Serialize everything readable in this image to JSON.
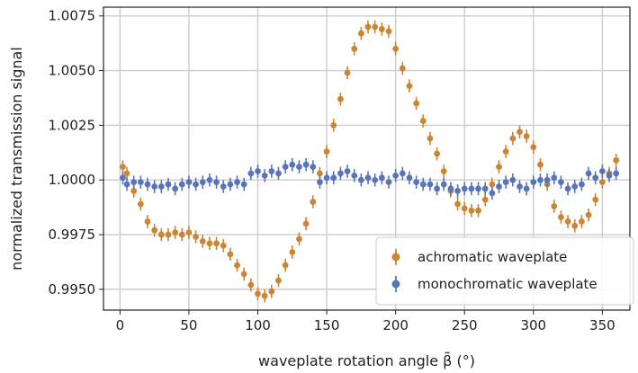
{
  "chart_data": {
    "type": "scatter",
    "title": "",
    "xlabel": "waveplate rotation angle β̃ (°)",
    "ylabel": "normalized transmission signal",
    "xlim": [
      -12,
      370
    ],
    "ylim": [
      0.99405,
      1.0079
    ],
    "xticks": [
      0,
      50,
      100,
      150,
      200,
      250,
      300,
      350
    ],
    "yticks": [
      0.995,
      0.9975,
      1.0,
      1.0025,
      1.005,
      1.0075
    ],
    "xtick_labels": [
      "0",
      "50",
      "100",
      "150",
      "200",
      "250",
      "300",
      "350"
    ],
    "ytick_labels": [
      "0.9950",
      "0.9975",
      "1.0000",
      "1.0025",
      "1.0050",
      "1.0075"
    ],
    "grid": true,
    "legend": "lower-right",
    "series": [
      {
        "name": "achromatic waveplate",
        "color": "#cc8532",
        "yerr": 0.0003,
        "points": [
          [
            2,
            1.0006
          ],
          [
            5,
            1.0003
          ],
          [
            10,
            0.9995
          ],
          [
            15,
            0.9989
          ],
          [
            20,
            0.9981
          ],
          [
            25,
            0.9977
          ],
          [
            30,
            0.9975
          ],
          [
            35,
            0.9975
          ],
          [
            40,
            0.9976
          ],
          [
            45,
            0.9975
          ],
          [
            50,
            0.9976
          ],
          [
            55,
            0.9974
          ],
          [
            60,
            0.9972
          ],
          [
            65,
            0.9971
          ],
          [
            70,
            0.9971
          ],
          [
            75,
            0.997
          ],
          [
            80,
            0.9966
          ],
          [
            85,
            0.9961
          ],
          [
            90,
            0.9957
          ],
          [
            95,
            0.9952
          ],
          [
            100,
            0.9948
          ],
          [
            105,
            0.9947
          ],
          [
            110,
            0.9949
          ],
          [
            115,
            0.9954
          ],
          [
            120,
            0.9961
          ],
          [
            125,
            0.9967
          ],
          [
            130,
            0.9973
          ],
          [
            135,
            0.998
          ],
          [
            140,
            0.999
          ],
          [
            145,
            1.0003
          ],
          [
            150,
            1.0013
          ],
          [
            155,
            1.0025
          ],
          [
            160,
            1.0037
          ],
          [
            165,
            1.0049
          ],
          [
            170,
            1.006
          ],
          [
            175,
            1.0067
          ],
          [
            180,
            1.007
          ],
          [
            185,
            1.007
          ],
          [
            190,
            1.0069
          ],
          [
            195,
            1.0068
          ],
          [
            200,
            1.006
          ],
          [
            205,
            1.0051
          ],
          [
            210,
            1.0043
          ],
          [
            215,
            1.0035
          ],
          [
            220,
            1.0027
          ],
          [
            225,
            1.0019
          ],
          [
            230,
            1.0012
          ],
          [
            235,
            1.0004
          ],
          [
            240,
            0.9995
          ],
          [
            245,
            0.9989
          ],
          [
            250,
            0.9987
          ],
          [
            255,
            0.9986
          ],
          [
            260,
            0.9986
          ],
          [
            265,
            0.9991
          ],
          [
            270,
            0.9998
          ],
          [
            275,
            1.0006
          ],
          [
            280,
            1.0013
          ],
          [
            285,
            1.0019
          ],
          [
            290,
            1.0022
          ],
          [
            295,
            1.002
          ],
          [
            300,
            1.0015
          ],
          [
            305,
            1.0007
          ],
          [
            310,
            0.9998
          ],
          [
            315,
            0.9988
          ],
          [
            320,
            0.9983
          ],
          [
            325,
            0.9981
          ],
          [
            330,
            0.9979
          ],
          [
            335,
            0.9981
          ],
          [
            340,
            0.9984
          ],
          [
            345,
            0.9991
          ],
          [
            350,
            0.9999
          ],
          [
            355,
            1.0003
          ],
          [
            360,
            1.0009
          ]
        ]
      },
      {
        "name": "monochromatic waveplate",
        "color": "#5975b9",
        "yerr": 0.0003,
        "points": [
          [
            2,
            1.0001
          ],
          [
            5,
            0.9998
          ],
          [
            10,
            0.9999
          ],
          [
            15,
            0.9999
          ],
          [
            20,
            0.9998
          ],
          [
            25,
            0.9997
          ],
          [
            30,
            0.9997
          ],
          [
            35,
            0.9998
          ],
          [
            40,
            0.9996
          ],
          [
            45,
            0.9998
          ],
          [
            50,
            0.9999
          ],
          [
            55,
            0.9998
          ],
          [
            60,
            0.9999
          ],
          [
            65,
            1.0
          ],
          [
            70,
            0.9999
          ],
          [
            75,
            0.9997
          ],
          [
            80,
            0.9998
          ],
          [
            85,
            0.9999
          ],
          [
            90,
            0.9998
          ],
          [
            95,
            1.0003
          ],
          [
            100,
            1.0004
          ],
          [
            105,
            1.0002
          ],
          [
            110,
            1.0004
          ],
          [
            115,
            1.0003
          ],
          [
            120,
            1.0006
          ],
          [
            125,
            1.0007
          ],
          [
            130,
            1.0006
          ],
          [
            135,
            1.0007
          ],
          [
            140,
            1.0006
          ],
          [
            145,
            0.9999
          ],
          [
            150,
            1.0001
          ],
          [
            155,
            1.0001
          ],
          [
            160,
            1.0003
          ],
          [
            165,
            1.0004
          ],
          [
            170,
            1.0002
          ],
          [
            175,
            1.0
          ],
          [
            180,
            1.0001
          ],
          [
            185,
            1.0
          ],
          [
            190,
            1.0001
          ],
          [
            195,
            0.9999
          ],
          [
            200,
            1.0002
          ],
          [
            205,
            1.0003
          ],
          [
            210,
            1.0001
          ],
          [
            215,
            0.9999
          ],
          [
            220,
            0.9998
          ],
          [
            225,
            0.9998
          ],
          [
            230,
            0.9996
          ],
          [
            235,
            0.9998
          ],
          [
            240,
            0.9996
          ],
          [
            245,
            0.9995
          ],
          [
            250,
            0.9996
          ],
          [
            255,
            0.9996
          ],
          [
            260,
            0.9996
          ],
          [
            265,
            0.9996
          ],
          [
            270,
            0.9994
          ],
          [
            275,
            0.9997
          ],
          [
            280,
            0.9999
          ],
          [
            285,
            1.0
          ],
          [
            290,
            0.9997
          ],
          [
            295,
            0.9996
          ],
          [
            300,
            0.9999
          ],
          [
            305,
            1.0
          ],
          [
            310,
            1.0
          ],
          [
            315,
            1.0001
          ],
          [
            320,
            0.9999
          ],
          [
            325,
            0.9996
          ],
          [
            330,
            0.9997
          ],
          [
            335,
            0.9998
          ],
          [
            340,
            1.0003
          ],
          [
            345,
            1.0001
          ],
          [
            350,
            1.0004
          ],
          [
            355,
            1.0002
          ],
          [
            360,
            1.0003
          ]
        ]
      }
    ]
  }
}
